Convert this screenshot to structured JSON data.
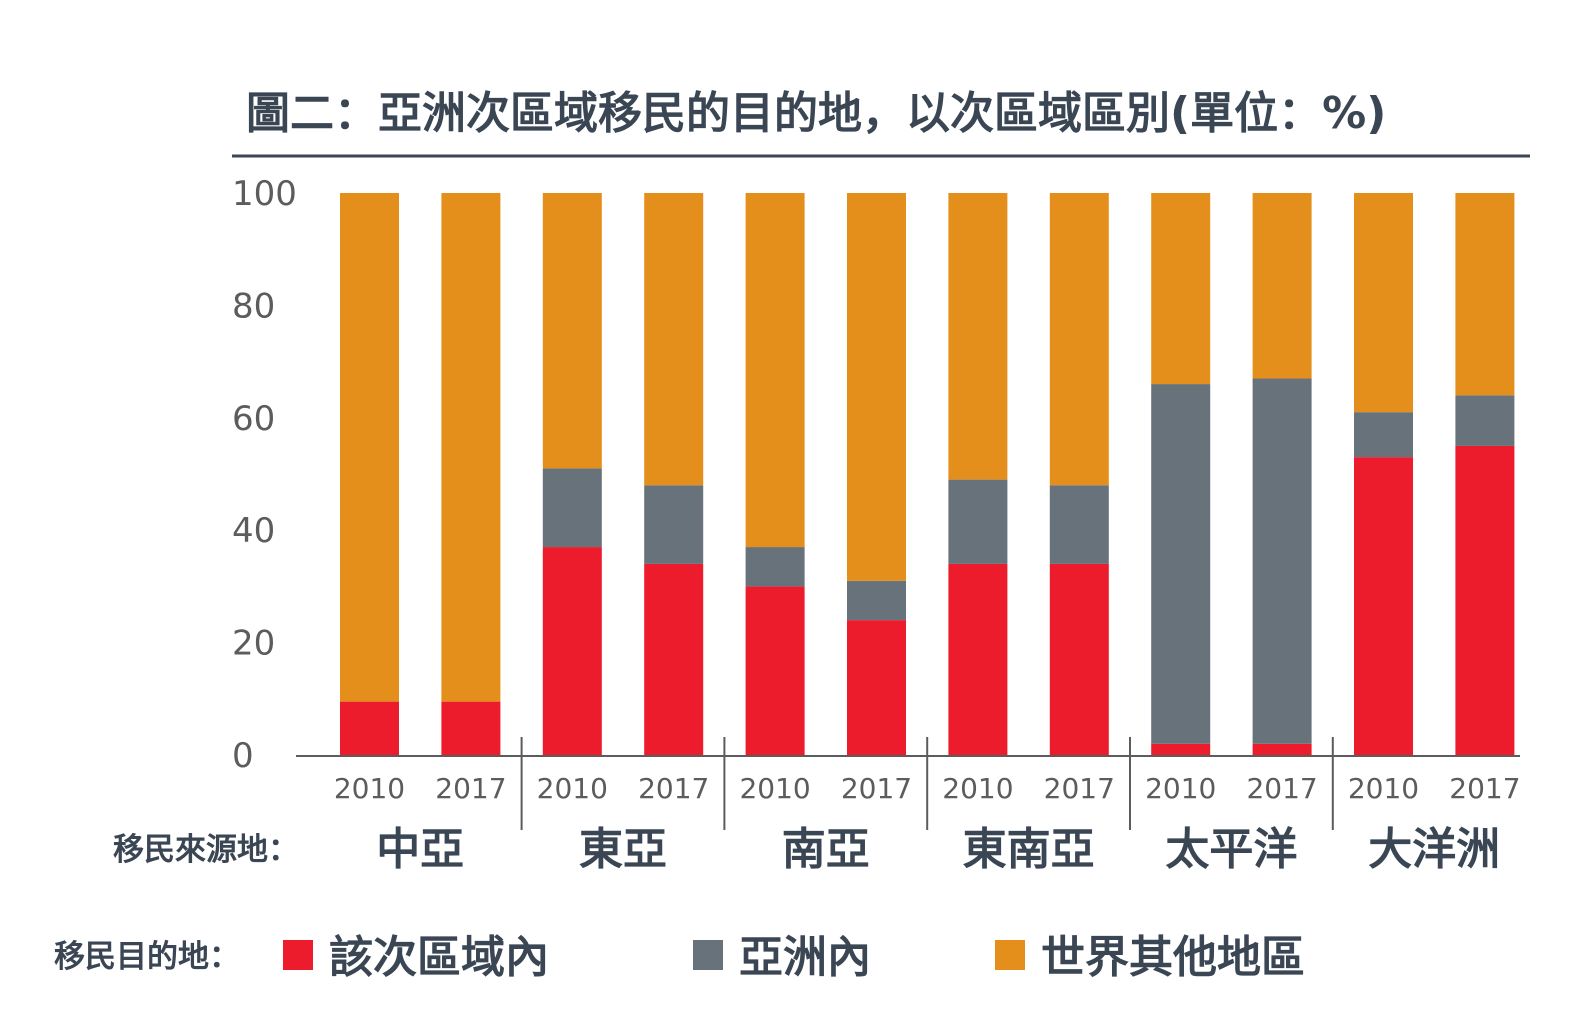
{
  "chart_data": {
    "type": "bar",
    "stacked": true,
    "title": "圖二：亞洲次區域移民的目的地，以次區域區別(單位：%)",
    "ylim": [
      0,
      100
    ],
    "yticks": [
      "0",
      "20",
      "40",
      "60",
      "80",
      "100"
    ],
    "years": [
      "2010",
      "2017"
    ],
    "categories": [
      "2010",
      "2017",
      "2010",
      "2017",
      "2010",
      "2017",
      "2010",
      "2017",
      "2010",
      "2017",
      "2010",
      "2017"
    ],
    "groups": [
      {
        "label": "中亞",
        "count": 2
      },
      {
        "label": "東亞",
        "count": 2
      },
      {
        "label": "南亞",
        "count": 2
      },
      {
        "label": "東南亞",
        "count": 2
      },
      {
        "label": "太平洋",
        "count": 2
      },
      {
        "label": "大洋洲",
        "count": 2
      }
    ],
    "origin_label": "移民來源地：",
    "legend_label": "移民目的地：",
    "series": [
      {
        "name": "該次區域內",
        "color": "#ed1c2c",
        "values": [
          9.5,
          9.5,
          37,
          34,
          30,
          24,
          34,
          34,
          2,
          2,
          53,
          55
        ]
      },
      {
        "name": "亞洲內",
        "color": "#67727a",
        "values": [
          0,
          0,
          14,
          14,
          7,
          7,
          15,
          14,
          64,
          65,
          8,
          9
        ]
      },
      {
        "name": "世界其他地區",
        "color": "#e48f1c",
        "values": [
          90.5,
          90.5,
          49,
          52,
          63,
          69,
          51,
          52,
          34,
          33,
          39,
          36
        ]
      }
    ]
  }
}
